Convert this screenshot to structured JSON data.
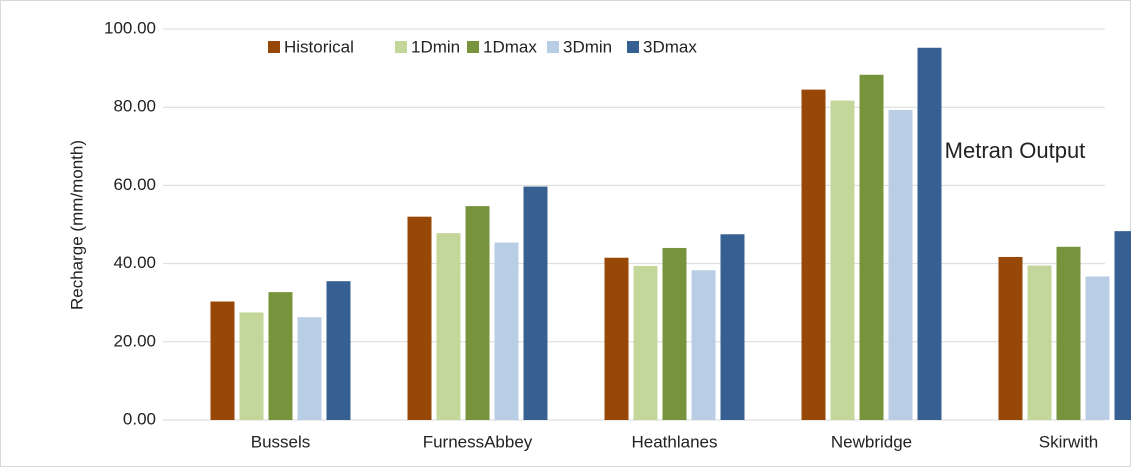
{
  "chart_data": {
    "type": "bar",
    "y_label": "Recharge (mm/month)",
    "annotation": "Metran Output",
    "categories": [
      "Bussels",
      "FurnessAbbey",
      "Heathlanes",
      "Newbridge",
      "Skirwith"
    ],
    "series": [
      {
        "name": "Historical",
        "color": "#974706",
        "values": [
          30.3,
          52.0,
          41.5,
          84.5,
          41.7
        ]
      },
      {
        "name": "1Dmin",
        "color": "#c4d79b",
        "values": [
          27.5,
          47.8,
          39.4,
          81.7,
          39.5
        ]
      },
      {
        "name": "1Dmax",
        "color": "#77933c",
        "values": [
          32.7,
          54.7,
          44.0,
          88.3,
          44.3
        ]
      },
      {
        "name": "3Dmin",
        "color": "#b9cde5",
        "values": [
          26.3,
          45.4,
          38.3,
          79.3,
          36.7
        ]
      },
      {
        "name": "3Dmax",
        "color": "#376092",
        "values": [
          35.5,
          59.7,
          47.5,
          95.2,
          48.3
        ]
      }
    ],
    "ylim": [
      0,
      100
    ],
    "yticks": [
      {
        "value": 0,
        "label": "0.00"
      },
      {
        "value": 20,
        "label": "20.00"
      },
      {
        "value": 40,
        "label": "40.00"
      },
      {
        "value": 60,
        "label": "60.00"
      },
      {
        "value": 80,
        "label": "80.00"
      },
      {
        "value": 100,
        "label": "100.00"
      }
    ],
    "grid": true,
    "legend": "top"
  }
}
